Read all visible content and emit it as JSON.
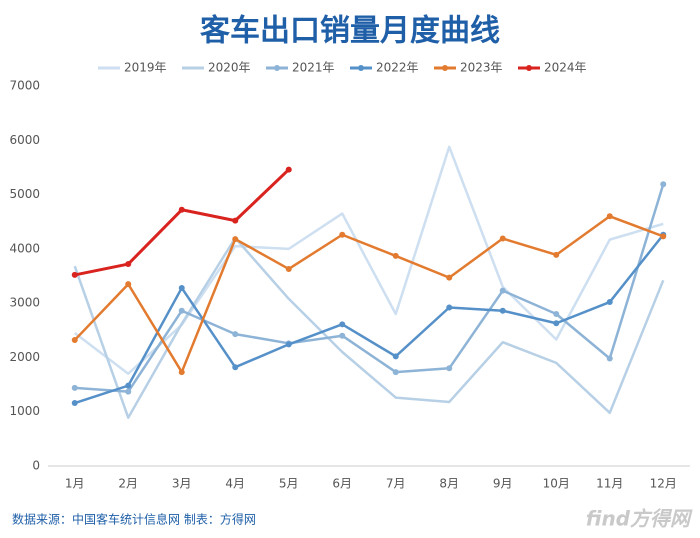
{
  "chart_data": {
    "type": "line",
    "title": "客车出口销量月度曲线",
    "source": "数据来源：中国客车统计信息网   制表：方得网",
    "watermark": "find方得网",
    "categories": [
      "1月",
      "2月",
      "3月",
      "4月",
      "5月",
      "6月",
      "7月",
      "8月",
      "9月",
      "10月",
      "11月",
      "12月"
    ],
    "series": [
      {
        "name": "2019年",
        "color": "#cddff0",
        "markers": false,
        "values": [
          2450,
          1700,
          2600,
          4050,
          4000,
          4650,
          2800,
          5880,
          3300,
          2330,
          4170,
          4460
        ]
      },
      {
        "name": "2020年",
        "color": "#b7d0e6",
        "markers": false,
        "values": [
          3680,
          890,
          2620,
          4200,
          3080,
          2100,
          1260,
          1180,
          2280,
          1900,
          980,
          3420
        ]
      },
      {
        "name": "2021年",
        "color": "#8db3d6",
        "markers": true,
        "values": [
          1440,
          1370,
          2860,
          2430,
          2260,
          2400,
          1730,
          1800,
          3230,
          2800,
          1980,
          5190
        ]
      },
      {
        "name": "2022年",
        "color": "#5590c8",
        "markers": true,
        "values": [
          1160,
          1480,
          3280,
          1820,
          2240,
          2610,
          2020,
          2920,
          2860,
          2630,
          3020,
          4260
        ]
      },
      {
        "name": "2023年",
        "color": "#e27b2f",
        "markers": true,
        "values": [
          2320,
          3350,
          1730,
          4180,
          3630,
          4260,
          3870,
          3470,
          4190,
          3890,
          4600,
          4230
        ]
      },
      {
        "name": "2024年",
        "color": "#d9231f",
        "markers": true,
        "values": [
          3520,
          3720,
          4720,
          4520,
          5460,
          null,
          null,
          null,
          null,
          null,
          null,
          null
        ]
      }
    ],
    "ylim": [
      0,
      7000
    ],
    "yticks": [
      0,
      1000,
      2000,
      3000,
      4000,
      5000,
      6000,
      7000
    ],
    "grid": false
  }
}
